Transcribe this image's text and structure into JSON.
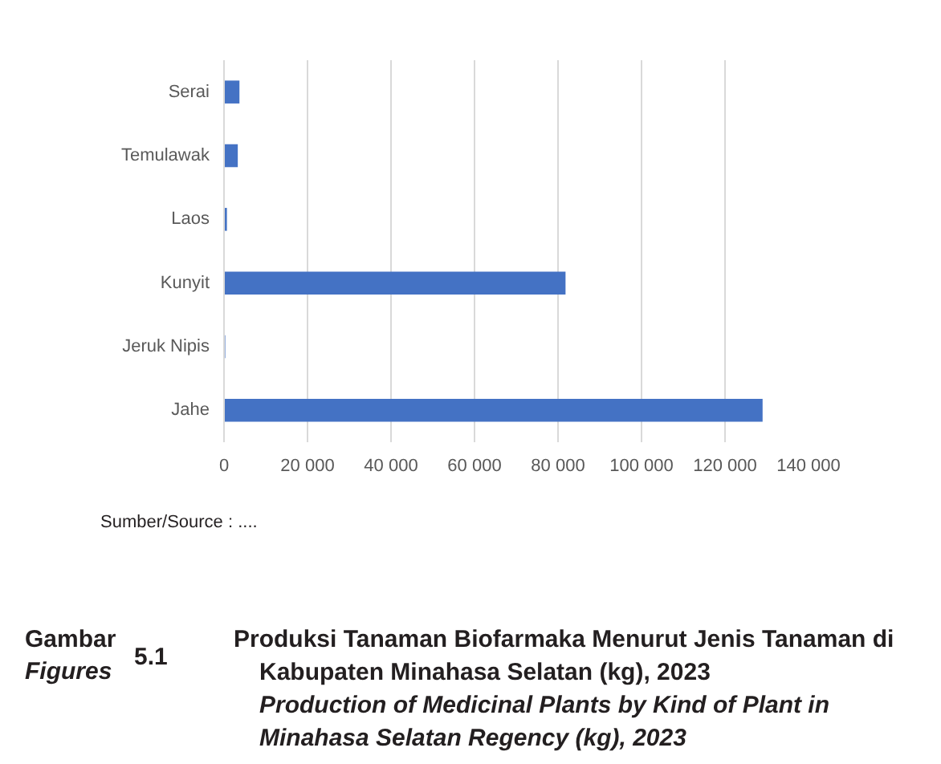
{
  "chart_data": {
    "type": "bar",
    "orientation": "horizontal",
    "title": "Produksi Tanaman Biofarmaka Menurut Jenis Tanaman di Kabupaten Minahasa Selatan (kg), 2023",
    "subtitle": "Production of Medicinal Plants by Kind of Plant in Minahasa Selatan Regency (kg), 2023",
    "annotations": [
      "Sumber/Source : ....",
      "Gambar",
      "Figures",
      "5.1"
    ],
    "categories": [
      "Serai",
      "Temulawak",
      "Laos",
      "Kunyit",
      "Jeruk Nipis",
      "Jahe"
    ],
    "values": [
      3700,
      3300,
      700,
      81800,
      300,
      129000
    ],
    "color": "#4472c4",
    "xlim": [
      0,
      140000
    ],
    "xticks": [
      0,
      {
        "value": 20000,
        "label": "20 000"
      },
      {
        "value": 40000,
        "label": "40 000"
      },
      {
        "value": 60000,
        "label": "60 000"
      },
      {
        "value": 80000,
        "label": "80 000"
      },
      {
        "value": 100000,
        "label": "100 000"
      },
      {
        "value": 120000,
        "label": "120 000"
      },
      {
        "value": 140000,
        "label": "140 000"
      }
    ],
    "grid": "x"
  }
}
